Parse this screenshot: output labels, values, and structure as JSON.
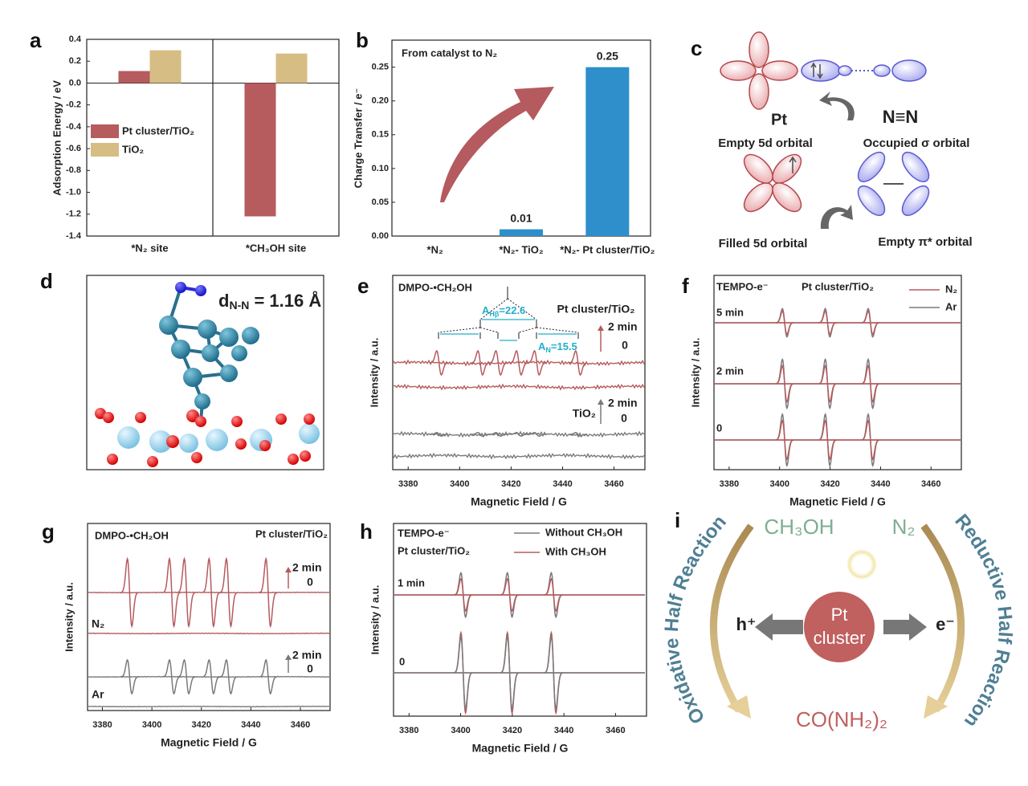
{
  "chart_data": [
    {
      "panel": "a",
      "type": "bar",
      "ylabel": "Adsorption Energy / eV",
      "categories": [
        "*N₂ site",
        "*CH₃OH site"
      ],
      "series": [
        {
          "name": "Pt cluster/TiO₂",
          "color": "#b65b5e",
          "values": [
            0.11,
            -1.22
          ]
        },
        {
          "name": "TiO₂",
          "color": "#d6bd84",
          "values": [
            0.3,
            0.27
          ]
        }
      ],
      "ylim": [
        -1.4,
        0.4
      ],
      "yticks": [
        -1.4,
        -1.2,
        {
          "value": -1,
          "label": "-1.0"
        },
        -0.8,
        -0.6,
        -0.4,
        -0.2,
        {
          "value": 0,
          "label": "0.0"
        },
        0.2,
        0.4
      ]
    },
    {
      "panel": "b",
      "type": "bar",
      "ylabel": "Charge Transfer / e⁻",
      "annotation": "From catalyst to N₂",
      "categories": [
        "*N₂",
        "*N₂- TiO₂",
        "*N₂- Pt cluster/TiO₂"
      ],
      "values": [
        0,
        0.01,
        0.25
      ],
      "value_labels": [
        null,
        "0.01",
        "0.25"
      ],
      "color": "#2e8fcb",
      "ylim": [
        0,
        0.29
      ],
      "yticks": [
        {
          "value": 0,
          "label": "0.00"
        },
        0.05,
        {
          "value": 0.1,
          "label": "0.10"
        },
        0.15,
        {
          "value": 0.2,
          "label": "0.20"
        },
        0.25
      ]
    },
    {
      "panel": "e",
      "type": "epr",
      "title": "DMPO-•CH₂OH",
      "xlabel": "Magnetic Field / G",
      "ylabel": "Intensity / a.u.",
      "xlim": [
        3374,
        3472
      ],
      "xticks": [
        3380,
        3400,
        3420,
        3440,
        3460
      ],
      "peaks": [
        3392,
        3408,
        3415,
        3423,
        3430,
        3446
      ],
      "groups": [
        {
          "name": "Pt cluster/TiO₂",
          "color": "#b65b5e",
          "times": [
            "2 min",
            "0"
          ],
          "amplitudes": [
            1,
            0
          ]
        },
        {
          "name": "TiO₂",
          "color": "#7a7a7a",
          "times": [
            "2 min",
            "0"
          ],
          "amplitudes": [
            0.15,
            0
          ]
        }
      ],
      "hyperfine": [
        {
          "symbol": "A",
          "sub": "Hβ",
          "text": "=22.6"
        },
        {
          "symbol": "A",
          "sub": "N",
          "text": "=15.5"
        }
      ]
    },
    {
      "panel": "f",
      "type": "epr",
      "title": "TEMPO-e⁻",
      "subtitle": "Pt cluster/TiO₂",
      "xlabel": "Magnetic Field / G",
      "ylabel": "Intensity / a.u.",
      "xlim": [
        3374,
        3472
      ],
      "xticks": [
        3380,
        3400,
        3420,
        3440,
        3460
      ],
      "peaks": [
        3402,
        3419,
        3436
      ],
      "series": [
        {
          "name": "N₂",
          "color": "#b65b5e"
        },
        {
          "name": "Ar",
          "color": "#7a7a7a"
        }
      ],
      "groups": [
        {
          "name": "5 min",
          "amplitudes": [
            0.45,
            0.55
          ]
        },
        {
          "name": "2 min",
          "amplitudes": [
            0.7,
            0.95
          ]
        },
        {
          "name": "0",
          "amplitudes": [
            0.75,
            1
          ]
        }
      ]
    },
    {
      "panel": "g",
      "type": "epr",
      "title": "DMPO-•CH₂OH",
      "subtitle": "Pt cluster/TiO₂",
      "xlabel": "Magnetic Field / G",
      "ylabel": "Intensity / a.u.",
      "xlim": [
        3374,
        3472
      ],
      "xticks": [
        3380,
        3400,
        3420,
        3440,
        3460
      ],
      "peaks": [
        3391,
        3408,
        3414,
        3424,
        3431,
        3447
      ],
      "groups": [
        {
          "name": "N₂",
          "color": "#b65b5e",
          "times": [
            "2 min",
            "0"
          ],
          "amplitudes": [
            1,
            0
          ]
        },
        {
          "name": "Ar",
          "color": "#7a7a7a",
          "times": [
            "2 min",
            "0"
          ],
          "amplitudes": [
            0.5,
            0
          ]
        }
      ]
    },
    {
      "panel": "h",
      "type": "epr",
      "title": "TEMPO-e⁻",
      "subtitle": "Pt cluster/TiO₂",
      "xlabel": "Magnetic Field / G",
      "ylabel": "Intensity / a.u.",
      "xlim": [
        3374,
        3472
      ],
      "xticks": [
        3380,
        3400,
        3420,
        3440,
        3460
      ],
      "peaks": [
        3401,
        3419,
        3436
      ],
      "series": [
        {
          "name": "Without CH₃OH",
          "color": "#7a7a7a"
        },
        {
          "name": "With CH₃OH",
          "color": "#b65b5e"
        }
      ],
      "groups": [
        {
          "name": "1 min",
          "amplitudes": [
            0.55,
            0.4
          ]
        },
        {
          "name": "0",
          "amplitudes": [
            0.9,
            1
          ]
        }
      ]
    }
  ],
  "panel_c": {
    "panel": "c",
    "metal": "Pt",
    "ligand": "N≡N",
    "labels": [
      "Empty 5d orbital",
      "Occupied σ orbital",
      "Filled 5d orbital",
      "Empty π* orbital"
    ]
  },
  "panel_d": {
    "panel": "d",
    "bond_length": {
      "symbol": "d",
      "sub": "N-N",
      "text": " = 1.16 Å"
    }
  },
  "panel_i": {
    "panel": "i",
    "left_arc": "Oxidative Half Reaction",
    "right_arc": "Reductive Half Reaction",
    "reactants": [
      "CH₃OH",
      "N₂"
    ],
    "hole": "h⁺",
    "electron": "e⁻",
    "center": [
      "Pt",
      "cluster"
    ],
    "product": "CO(NH₂)₂"
  }
}
